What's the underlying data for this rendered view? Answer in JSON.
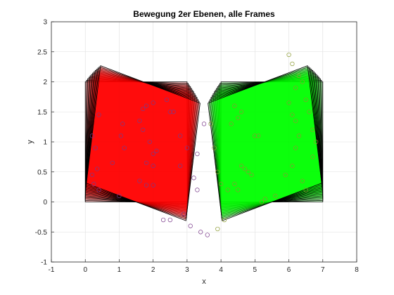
{
  "chart_data": {
    "type": "area",
    "title": "Bewegung 2er Ebenen, alle Frames",
    "xlabel": "x",
    "ylabel": "y",
    "xlim": [
      -1,
      8
    ],
    "ylim": [
      -1,
      3
    ],
    "xticks": [
      "-1",
      "0",
      "1",
      "2",
      "3",
      "4",
      "5",
      "6",
      "7",
      "8"
    ],
    "yticks": [
      "-1",
      "-0.5",
      "0",
      "0.5",
      "1",
      "1.5",
      "2",
      "2.5",
      "3"
    ],
    "grid": true,
    "colors": {
      "red_fill": "#ff0000",
      "green_fill": "#00ff00",
      "edge": "#000000",
      "grid": "#dfdfdf",
      "points_red": "#7a3a8a",
      "points_green": "#8a9a30"
    },
    "series": [
      {
        "color": "red",
        "rect_initial": {
          "x": [
            0,
            3
          ],
          "y": [
            0,
            2
          ]
        },
        "rotation_center": [
          1.5,
          0
        ],
        "frames": 13,
        "max_angle_deg": 12
      },
      {
        "color": "green",
        "rect_initial": {
          "x": [
            4,
            7
          ],
          "y": [
            0,
            2
          ]
        },
        "rotation_center": [
          5.5,
          0
        ],
        "frames": 13,
        "max_angle_deg": 12
      }
    ],
    "points_red": [
      [
        0.4,
        1.45
      ],
      [
        0.2,
        1.1
      ],
      [
        0.3,
        0.9
      ],
      [
        0.35,
        0.55
      ],
      [
        0.2,
        0.45
      ],
      [
        0.4,
        0.2
      ],
      [
        0.25,
        0.3
      ],
      [
        0.8,
        0.65
      ],
      [
        1.1,
        1.3
      ],
      [
        1.05,
        1.1
      ],
      [
        1.15,
        0.9
      ],
      [
        1.0,
        0.1
      ],
      [
        1.6,
        1.35
      ],
      [
        1.7,
        1.55
      ],
      [
        1.8,
        1.6
      ],
      [
        2.0,
        1.65
      ],
      [
        1.7,
        1.2
      ],
      [
        1.9,
        1.0
      ],
      [
        2.0,
        0.8
      ],
      [
        2.1,
        0.85
      ],
      [
        1.8,
        0.65
      ],
      [
        2.0,
        0.6
      ],
      [
        1.6,
        0.35
      ],
      [
        1.8,
        0.28
      ],
      [
        2.0,
        0.28
      ],
      [
        2.3,
        -0.3
      ],
      [
        2.5,
        -0.3
      ],
      [
        2.5,
        1.5
      ],
      [
        2.6,
        1.5
      ],
      [
        2.4,
        1.7
      ],
      [
        2.8,
        1.1
      ],
      [
        3.0,
        0.9
      ],
      [
        2.8,
        0.6
      ],
      [
        3.2,
        0.4
      ],
      [
        3.3,
        0.2
      ],
      [
        2.9,
        -0.2
      ],
      [
        3.1,
        -0.4
      ],
      [
        3.4,
        -0.5
      ],
      [
        3.6,
        -0.55
      ],
      [
        3.5,
        1.3
      ],
      [
        3.3,
        0.8
      ]
    ],
    "points_green": [
      [
        3.7,
        1.3
      ],
      [
        3.8,
        0.9
      ],
      [
        3.9,
        0.5
      ],
      [
        4.0,
        0.3
      ],
      [
        4.2,
        0.2
      ],
      [
        4.4,
        0.3
      ],
      [
        4.5,
        0.2
      ],
      [
        4.6,
        0.6
      ],
      [
        4.7,
        0.55
      ],
      [
        4.8,
        0.5
      ],
      [
        4.9,
        0.45
      ],
      [
        5.0,
        1.1
      ],
      [
        5.1,
        1.1
      ],
      [
        4.5,
        1.4
      ],
      [
        4.6,
        1.5
      ],
      [
        4.4,
        1.6
      ],
      [
        4.3,
        1.3
      ],
      [
        5.2,
        0.0
      ],
      [
        5.3,
        0.05
      ],
      [
        5.6,
        0.1
      ],
      [
        6.0,
        1.65
      ],
      [
        6.1,
        1.45
      ],
      [
        6.2,
        1.35
      ],
      [
        6.3,
        1.1
      ],
      [
        6.2,
        0.9
      ],
      [
        6.1,
        0.6
      ],
      [
        5.9,
        0.45
      ],
      [
        6.4,
        0.35
      ],
      [
        6.5,
        0.2
      ],
      [
        6.0,
        2.45
      ],
      [
        6.1,
        2.3
      ],
      [
        6.3,
        2.1
      ],
      [
        6.2,
        1.9
      ],
      [
        6.5,
        1.7
      ],
      [
        6.6,
        1.5
      ],
      [
        6.7,
        1.2
      ],
      [
        6.8,
        1.0
      ],
      [
        6.7,
        0.75
      ],
      [
        6.4,
        2.0
      ],
      [
        4.1,
        -0.3
      ],
      [
        3.9,
        -0.45
      ]
    ]
  }
}
